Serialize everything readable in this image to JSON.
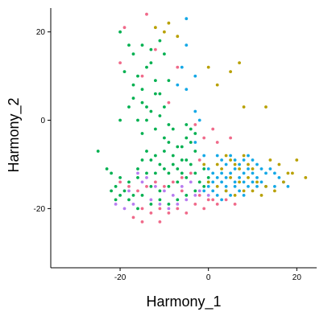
{
  "chart_data": {
    "type": "scatter",
    "xlabel": "Harmony_1",
    "ylabel": "Harmony_2",
    "xlim": [
      -35.7,
      24.5
    ],
    "ylim": [
      -33.4,
      25.4
    ],
    "xticks": [
      -20,
      0,
      20
    ],
    "xtick_labels": [
      "-20",
      "0",
      "20"
    ],
    "yticks": [
      20,
      0,
      -20
    ],
    "ytick_labels": [
      "20",
      "0",
      "-20"
    ],
    "grid": false,
    "legend": "none",
    "colors": {
      "green": "#00b050",
      "blue": "#14a8e6",
      "gold": "#b8a000",
      "pink": "#f06a8a",
      "purple": "#b87cf0"
    },
    "series": [
      {
        "color": "#00b050",
        "points": [
          [
            -20,
            20
          ],
          [
            -18,
            17
          ],
          [
            -17,
            15
          ],
          [
            -15,
            17
          ],
          [
            -13,
            16
          ],
          [
            -11,
            18
          ],
          [
            -16,
            10
          ],
          [
            -14,
            12
          ],
          [
            -12,
            9
          ],
          [
            -19,
            11
          ],
          [
            -13,
            13
          ],
          [
            -10,
            15
          ],
          [
            -9,
            9
          ],
          [
            -11,
            6
          ],
          [
            -15,
            4
          ],
          [
            -17,
            5
          ],
          [
            -14,
            3
          ],
          [
            -18,
            3
          ],
          [
            -16,
            0
          ],
          [
            -20,
            0
          ],
          [
            -14,
            0
          ],
          [
            -11,
            1
          ],
          [
            -9,
            -1
          ],
          [
            -8,
            -2
          ],
          [
            -12,
            -2
          ],
          [
            -15,
            -3
          ],
          [
            -10,
            -4
          ],
          [
            -9,
            -5
          ],
          [
            -7,
            -6
          ],
          [
            -6,
            -6
          ],
          [
            -5,
            -4
          ],
          [
            -4,
            -5
          ],
          [
            -3,
            -3
          ],
          [
            -5,
            -1
          ],
          [
            -4,
            -2
          ],
          [
            -3,
            -7
          ],
          [
            -6,
            -9
          ],
          [
            -8,
            -10
          ],
          [
            -10,
            -11
          ],
          [
            -12,
            -12
          ],
          [
            -14,
            -12
          ],
          [
            -16,
            -13
          ],
          [
            -18,
            -14
          ],
          [
            -20,
            -13
          ],
          [
            -22,
            -12
          ],
          [
            -21,
            -15
          ],
          [
            -19,
            -16
          ],
          [
            -17,
            -17
          ],
          [
            -15,
            -17
          ],
          [
            -13,
            -15
          ],
          [
            -11,
            -16
          ],
          [
            -9,
            -15
          ],
          [
            -7,
            -14
          ],
          [
            -5,
            -13
          ],
          [
            -3,
            -12
          ],
          [
            -25,
            -7
          ],
          [
            -23,
            -11
          ],
          [
            -12,
            -8
          ],
          [
            -10,
            -7
          ],
          [
            -8,
            -8
          ],
          [
            -13,
            -9
          ],
          [
            -11,
            -10
          ],
          [
            -9,
            -12
          ],
          [
            -7,
            -11
          ],
          [
            -5,
            -9
          ],
          [
            -4,
            -10
          ],
          [
            -6,
            -12
          ],
          [
            -14,
            -7
          ],
          [
            -15,
            -9
          ],
          [
            -16,
            -11
          ],
          [
            -2,
            -14
          ],
          [
            -1,
            -15
          ],
          [
            0,
            -13
          ],
          [
            -1,
            -11
          ],
          [
            -3,
            -16
          ],
          [
            -5,
            -17
          ],
          [
            -7,
            -18
          ],
          [
            -9,
            -19
          ],
          [
            -11,
            -18
          ],
          [
            -13,
            -19
          ],
          [
            -16,
            -20
          ],
          [
            -18,
            -18
          ],
          [
            -20,
            -17
          ],
          [
            -21,
            -18
          ],
          [
            -22,
            -16
          ],
          [
            -12,
            6
          ],
          [
            -10,
            3
          ],
          [
            -13,
            2
          ],
          [
            -17,
            8
          ],
          [
            -15,
            7
          ]
        ]
      },
      {
        "color": "#14a8e6",
        "points": [
          [
            -5,
            23
          ],
          [
            -5,
            17
          ],
          [
            -6,
            12
          ],
          [
            -3,
            10
          ],
          [
            -5,
            7
          ],
          [
            -7,
            8
          ],
          [
            -3,
            2
          ],
          [
            -2,
            0
          ],
          [
            -3,
            -5
          ],
          [
            -1,
            -8
          ],
          [
            0,
            -11
          ],
          [
            1,
            -12
          ],
          [
            2,
            -13
          ],
          [
            3,
            -14
          ],
          [
            4,
            -13
          ],
          [
            5,
            -12
          ],
          [
            6,
            -14
          ],
          [
            7,
            -13
          ],
          [
            8,
            -12
          ],
          [
            9,
            -11
          ],
          [
            10,
            -12
          ],
          [
            11,
            -13
          ],
          [
            12,
            -14
          ],
          [
            13,
            -12
          ],
          [
            14,
            -11
          ],
          [
            15,
            -12
          ],
          [
            16,
            -13
          ],
          [
            17,
            -14
          ],
          [
            18,
            -15
          ],
          [
            2,
            -8
          ],
          [
            3,
            -9
          ],
          [
            4,
            -10
          ],
          [
            5,
            -8
          ],
          [
            6,
            -9
          ],
          [
            7,
            -10
          ],
          [
            8,
            -9
          ],
          [
            9,
            -8
          ],
          [
            10,
            -9
          ],
          [
            11,
            -10
          ],
          [
            12,
            -11
          ],
          [
            1,
            -16
          ],
          [
            2,
            -17
          ],
          [
            3,
            -18
          ],
          [
            4,
            -16
          ],
          [
            5,
            -17
          ],
          [
            6,
            -15
          ],
          [
            7,
            -16
          ],
          [
            8,
            -17
          ],
          [
            9,
            -15
          ],
          [
            10,
            -14
          ],
          [
            0,
            -15
          ],
          [
            -1,
            -16
          ],
          [
            1,
            -14
          ],
          [
            3,
            -12
          ],
          [
            4,
            -15
          ],
          [
            6,
            -11
          ],
          [
            8,
            -14
          ],
          [
            11,
            -15
          ],
          [
            13,
            -15
          ],
          [
            15,
            -15
          ]
        ]
      },
      {
        "color": "#b8a000",
        "points": [
          [
            -9,
            22
          ],
          [
            -10,
            20
          ],
          [
            -7,
            19
          ],
          [
            -12,
            21
          ],
          [
            0,
            12
          ],
          [
            2,
            8
          ],
          [
            5,
            11
          ],
          [
            7,
            13
          ],
          [
            8,
            3
          ],
          [
            13,
            3
          ],
          [
            4,
            -8
          ],
          [
            5,
            -9
          ],
          [
            6,
            -10
          ],
          [
            7,
            -11
          ],
          [
            8,
            -8
          ],
          [
            9,
            -10
          ],
          [
            10,
            -11
          ],
          [
            14,
            -9
          ],
          [
            16,
            -10
          ],
          [
            19,
            -12
          ],
          [
            20,
            -9
          ],
          [
            22,
            -13
          ],
          [
            2,
            -10
          ],
          [
            3,
            -11
          ],
          [
            5,
            -13
          ],
          [
            7,
            -14
          ],
          [
            9,
            -13
          ],
          [
            11,
            -14
          ],
          [
            13,
            -15
          ],
          [
            15,
            -16
          ],
          [
            17,
            -14
          ],
          [
            18,
            -12
          ],
          [
            -1,
            -10
          ],
          [
            0,
            -14
          ],
          [
            2,
            -15
          ],
          [
            4,
            -16
          ],
          [
            6,
            -17
          ],
          [
            8,
            -16
          ],
          [
            10,
            -16
          ],
          [
            12,
            -17
          ]
        ]
      },
      {
        "color": "#f06a8a",
        "points": [
          [
            -14,
            24
          ],
          [
            -19,
            21
          ],
          [
            -12,
            16
          ],
          [
            -20,
            13
          ],
          [
            -15,
            10
          ],
          [
            -7,
            12
          ],
          [
            -9,
            4
          ],
          [
            -3,
            -1
          ],
          [
            -1,
            -4
          ],
          [
            1,
            -2
          ],
          [
            2,
            -5
          ],
          [
            5,
            -4
          ],
          [
            -2,
            -9
          ],
          [
            -4,
            -12
          ],
          [
            -6,
            -13
          ],
          [
            -8,
            -14
          ],
          [
            -10,
            -15
          ],
          [
            -12,
            -14
          ],
          [
            -14,
            -15
          ],
          [
            -16,
            -16
          ],
          [
            -18,
            -15
          ],
          [
            -20,
            -14
          ],
          [
            -15,
            -20
          ],
          [
            -13,
            -21
          ],
          [
            -11,
            -20
          ],
          [
            -9,
            -21
          ],
          [
            -7,
            -20
          ],
          [
            -5,
            -21
          ],
          [
            -3,
            -19
          ],
          [
            -1,
            -20
          ],
          [
            0,
            -18
          ],
          [
            2,
            -19
          ],
          [
            4,
            -18
          ],
          [
            6,
            -19
          ],
          [
            -17,
            -22
          ],
          [
            -15,
            -23
          ],
          [
            -11,
            -23
          ],
          [
            -6,
            -16
          ],
          [
            -2,
            -17
          ],
          [
            1,
            -18
          ]
        ]
      },
      {
        "color": "#b87cf0",
        "points": [
          [
            -16,
            -12
          ],
          [
            -14,
            -13
          ],
          [
            -12,
            -15
          ],
          [
            -10,
            -16
          ],
          [
            -8,
            -17
          ],
          [
            -6,
            -15
          ],
          [
            -4,
            -14
          ],
          [
            -2,
            -16
          ],
          [
            0,
            -17
          ],
          [
            -17,
            -19
          ],
          [
            -19,
            -20
          ],
          [
            -21,
            -19
          ],
          [
            -13,
            -18
          ],
          [
            -11,
            -19
          ],
          [
            -9,
            -20
          ],
          [
            -7,
            -19
          ],
          [
            -5,
            -18
          ],
          [
            -3,
            -17
          ],
          [
            -15,
            -14
          ],
          [
            -18,
            -16
          ]
        ]
      }
    ]
  }
}
